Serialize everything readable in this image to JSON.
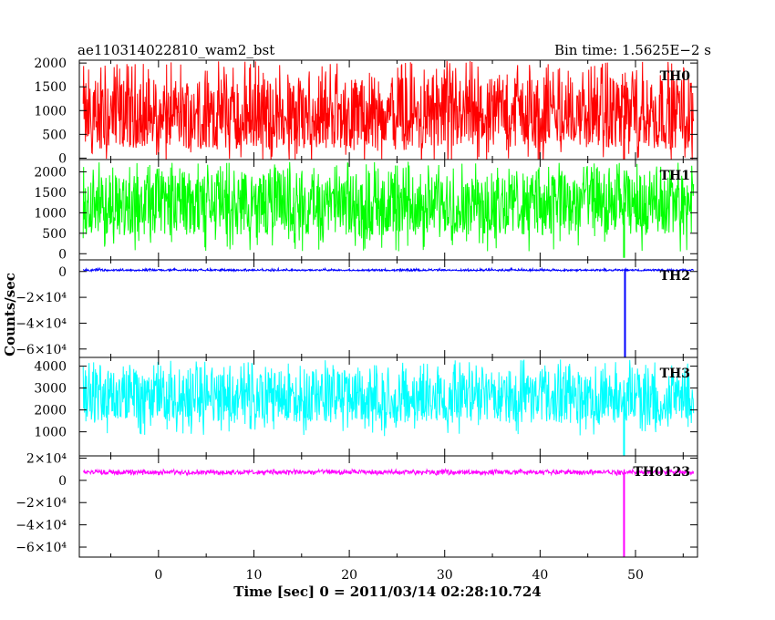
{
  "header": {
    "title": "ae110314022810_wam2_bst",
    "bin_time": "Bin time: 1.5625E−2 s"
  },
  "chart_data": {
    "type": "line",
    "title": "ae110314022810_wam2_bst",
    "subtitle": "Bin time: 1.5625E−2 s",
    "xlabel": "Time [sec] 0 = 2011/03/14 02:28:10.724",
    "ylabel": "Counts/sec",
    "xlim": [
      -8.3,
      56.5
    ],
    "x_ticks": [
      {
        "value": 0,
        "label": "0"
      },
      {
        "value": 10,
        "label": "10"
      },
      {
        "value": 20,
        "label": "20"
      },
      {
        "value": 30,
        "label": "30"
      },
      {
        "value": 40,
        "label": "40"
      },
      {
        "value": 50,
        "label": "50"
      }
    ],
    "grid": false,
    "data_range_x": [
      -7.9,
      56.1
    ],
    "panels": [
      {
        "name": "TH0",
        "color": "#ff0000",
        "ylim": [
          -30,
          2060
        ],
        "y_ticks": [
          {
            "value": 0,
            "label": "0"
          },
          {
            "value": 500,
            "label": "500"
          },
          {
            "value": 1000,
            "label": "1000"
          },
          {
            "value": 1500,
            "label": "1500"
          },
          {
            "value": 2000,
            "label": "2000"
          }
        ],
        "series_stats": {
          "baseline": 200,
          "mean": 900,
          "upper": 1700,
          "peak": 2050
        },
        "spikes": [
          {
            "x": 48.8,
            "from": 900,
            "to": -30
          }
        ]
      },
      {
        "name": "TH1",
        "color": "#00ff00",
        "ylim": [
          -150,
          2300
        ],
        "y_ticks": [
          {
            "value": 0,
            "label": "0"
          },
          {
            "value": 500,
            "label": "500"
          },
          {
            "value": 1000,
            "label": "1000"
          },
          {
            "value": 1500,
            "label": "1500"
          },
          {
            "value": 2000,
            "label": "2000"
          }
        ],
        "series_stats": {
          "baseline": 450,
          "mean": 1250,
          "upper": 1950,
          "peak": 2250
        },
        "spikes": [
          {
            "x": 48.8,
            "from": 1250,
            "to": -100
          }
        ]
      },
      {
        "name": "TH2",
        "color": "#0000ff",
        "ylim": [
          -66500,
          9000
        ],
        "y_ticks": [
          {
            "value": 0,
            "label": "0"
          },
          {
            "value": -20000,
            "label": "−2×10⁴"
          },
          {
            "value": -40000,
            "label": "−4×10⁴"
          },
          {
            "value": -60000,
            "label": "−6×10⁴"
          }
        ],
        "series_stats": {
          "baseline": 500,
          "mean": 1000,
          "upper": 1700,
          "peak": 2500
        },
        "spikes": [
          {
            "x": 48.9,
            "from": 1000,
            "to": -66500
          }
        ]
      },
      {
        "name": "TH3",
        "color": "#00ffff",
        "ylim": [
          -100,
          4400
        ],
        "y_ticks": [
          {
            "value": 1000,
            "label": "1000"
          },
          {
            "value": 2000,
            "label": "2000"
          },
          {
            "value": 3000,
            "label": "3000"
          },
          {
            "value": 4000,
            "label": "4000"
          }
        ],
        "series_stats": {
          "baseline": 1400,
          "mean": 2600,
          "upper": 3800,
          "peak": 4300
        },
        "spikes": [
          {
            "x": 48.8,
            "from": 2600,
            "to": -100
          }
        ]
      },
      {
        "name": "TH0123",
        "color": "#ff00ff",
        "ylim": [
          -69000,
          22000
        ],
        "y_ticks": [
          {
            "value": 20000,
            "label": "2×10⁴"
          },
          {
            "value": 0,
            "label": "0"
          },
          {
            "value": -20000,
            "label": "−2×10⁴"
          },
          {
            "value": -40000,
            "label": "−4×10⁴"
          },
          {
            "value": -60000,
            "label": "−6×10⁴"
          }
        ],
        "series_stats": {
          "baseline": 5500,
          "mean": 7500,
          "upper": 9000,
          "peak": 10000
        },
        "spikes": [
          {
            "x": 48.8,
            "from": 7500,
            "to": -69000
          }
        ]
      }
    ]
  }
}
